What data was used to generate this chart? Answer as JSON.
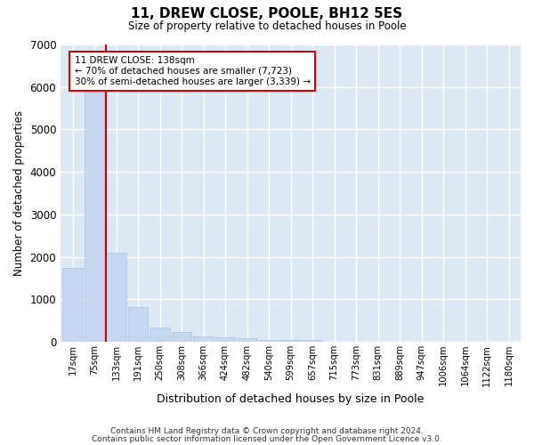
{
  "title": "11, DREW CLOSE, POOLE, BH12 5ES",
  "subtitle": "Size of property relative to detached houses in Poole",
  "xlabel": "Distribution of detached houses by size in Poole",
  "ylabel": "Number of detached properties",
  "footer_line1": "Contains HM Land Registry data © Crown copyright and database right 2024.",
  "footer_line2": "Contains public sector information licensed under the Open Government Licence v3.0.",
  "property_label": "11 DREW CLOSE: 138sqm",
  "annotation_line1": "← 70% of detached houses are smaller (7,723)",
  "annotation_line2": "30% of semi-detached houses are larger (3,339) →",
  "bar_color": "#c5d8f0",
  "bar_edge_color": "#aac4e0",
  "grid_color": "#ffffff",
  "background_color": "#dce9f5",
  "fig_background": "#ffffff",
  "annotation_box_color": "#ffffff",
  "annotation_box_edge": "#cc0000",
  "red_line_color": "#cc0000",
  "categories": [
    "17sqm",
    "75sqm",
    "133sqm",
    "191sqm",
    "250sqm",
    "308sqm",
    "366sqm",
    "424sqm",
    "482sqm",
    "540sqm",
    "599sqm",
    "657sqm",
    "715sqm",
    "773sqm",
    "831sqm",
    "889sqm",
    "947sqm",
    "1006sqm",
    "1064sqm",
    "1122sqm",
    "1180sqm"
  ],
  "values": [
    1750,
    5900,
    2100,
    820,
    340,
    240,
    135,
    100,
    90,
    55,
    50,
    40,
    0,
    0,
    0,
    0,
    0,
    0,
    0,
    0,
    0
  ],
  "ylim": [
    0,
    7000
  ],
  "yticks": [
    0,
    1000,
    2000,
    3000,
    4000,
    5000,
    6000,
    7000
  ],
  "red_line_x": 2,
  "figsize": [
    6.0,
    5.0
  ],
  "dpi": 100
}
